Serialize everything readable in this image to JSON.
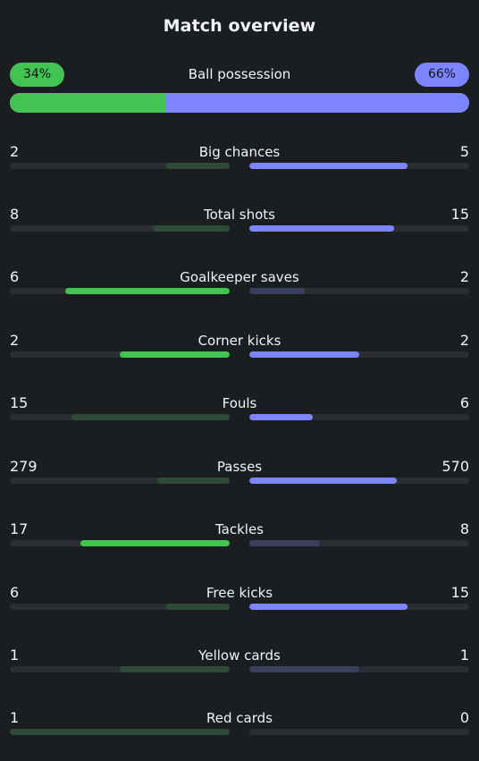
{
  "title": "Match overview",
  "colors": {
    "home_strong": "#43c452",
    "home_weak": "#2f4a36",
    "away_strong": "#7c85ff",
    "away_weak": "#3a3f5e"
  },
  "possession": {
    "label": "Ball possession",
    "home_text": "34%",
    "away_text": "66%",
    "home": 34,
    "away": 66
  },
  "stats": [
    {
      "label": "Big chances",
      "home": "2",
      "away": "5",
      "home_fill": 0.29,
      "away_fill": 0.72,
      "home_hl": false,
      "away_hl": true
    },
    {
      "label": "Total shots",
      "home": "8",
      "away": "15",
      "home_fill": 0.35,
      "away_fill": 0.66,
      "home_hl": false,
      "away_hl": true
    },
    {
      "label": "Goalkeeper saves",
      "home": "6",
      "away": "2",
      "home_fill": 0.75,
      "away_fill": 0.25,
      "home_hl": true,
      "away_hl": false
    },
    {
      "label": "Corner kicks",
      "home": "2",
      "away": "2",
      "home_fill": 0.5,
      "away_fill": 0.5,
      "home_hl": true,
      "away_hl": true
    },
    {
      "label": "Fouls",
      "home": "15",
      "away": "6",
      "home_fill": 0.72,
      "away_fill": 0.29,
      "home_hl": false,
      "away_hl": true
    },
    {
      "label": "Passes",
      "home": "279",
      "away": "570",
      "home_fill": 0.33,
      "away_fill": 0.67,
      "home_hl": false,
      "away_hl": true
    },
    {
      "label": "Tackles",
      "home": "17",
      "away": "8",
      "home_fill": 0.68,
      "away_fill": 0.32,
      "home_hl": true,
      "away_hl": false
    },
    {
      "label": "Free kicks",
      "home": "6",
      "away": "15",
      "home_fill": 0.29,
      "away_fill": 0.72,
      "home_hl": false,
      "away_hl": true
    },
    {
      "label": "Yellow cards",
      "home": "1",
      "away": "1",
      "home_fill": 0.5,
      "away_fill": 0.5,
      "home_hl": false,
      "away_hl": false
    },
    {
      "label": "Red cards",
      "home": "1",
      "away": "0",
      "home_fill": 1.0,
      "away_fill": 0.0,
      "home_hl": false,
      "away_hl": false
    }
  ]
}
